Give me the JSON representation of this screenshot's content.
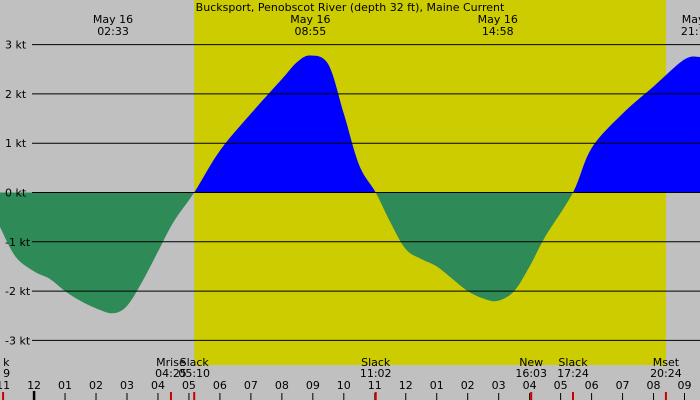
{
  "chart_data": {
    "type": "area",
    "title": "Bucksport, Penobscot River (depth 32 ft), Maine Current",
    "colors": {
      "night": "#c0c0c0",
      "day": "#cccc00",
      "flood": "#0000ff",
      "ebb": "#2e8b57",
      "grid": "#000000",
      "tick_hour": "#000000",
      "tick_event": "#cc0000"
    },
    "x_range_hours": [
      -1.1,
      21.5
    ],
    "ylim": [
      -3.5,
      3.5
    ],
    "y_ticks": [
      {
        "value": 3,
        "label": "3 kt"
      },
      {
        "value": 2,
        "label": "2 kt"
      },
      {
        "value": 1,
        "label": "1 kt"
      },
      {
        "value": 0,
        "label": "0 kt"
      },
      {
        "value": -1,
        "label": "-1 kt"
      },
      {
        "value": -2,
        "label": "-2 kt"
      },
      {
        "value": -3,
        "label": "-3 kt"
      }
    ],
    "daylight_hours": [
      5.17,
      20.4
    ],
    "x_tick_labels": [
      {
        "h": -1,
        "label": "11"
      },
      {
        "h": 0,
        "label": "12"
      },
      {
        "h": 1,
        "label": "01"
      },
      {
        "h": 2,
        "label": "02"
      },
      {
        "h": 3,
        "label": "03"
      },
      {
        "h": 4,
        "label": "04"
      },
      {
        "h": 5,
        "label": "05"
      },
      {
        "h": 6,
        "label": "06"
      },
      {
        "h": 7,
        "label": "07"
      },
      {
        "h": 8,
        "label": "08"
      },
      {
        "h": 9,
        "label": "09"
      },
      {
        "h": 10,
        "label": "10"
      },
      {
        "h": 11,
        "label": "11"
      },
      {
        "h": 12,
        "label": "12"
      },
      {
        "h": 13,
        "label": "01"
      },
      {
        "h": 14,
        "label": "02"
      },
      {
        "h": 15,
        "label": "03"
      },
      {
        "h": 16,
        "label": "04"
      },
      {
        "h": 17,
        "label": "05"
      },
      {
        "h": 18,
        "label": "06"
      },
      {
        "h": 19,
        "label": "07"
      },
      {
        "h": 20,
        "label": "08"
      },
      {
        "h": 21,
        "label": "09"
      }
    ],
    "top_labels": [
      {
        "h": 2.55,
        "date": "May 16",
        "time": "02:33"
      },
      {
        "h": 8.92,
        "date": "May 16",
        "time": "08:55"
      },
      {
        "h": 14.97,
        "date": "May 16",
        "time": "14:58"
      },
      {
        "h": 21.28,
        "date": "May",
        "time": "21:1"
      }
    ],
    "events": [
      {
        "h": -1.0,
        "name": "k",
        "time": "9"
      },
      {
        "h": 4.42,
        "name": "Mrise",
        "time": "04:25"
      },
      {
        "h": 5.17,
        "name": "Slack",
        "time": "05:10"
      },
      {
        "h": 11.03,
        "name": "Slack",
        "time": "11:02"
      },
      {
        "h": 16.05,
        "name": "New",
        "time": "16:03"
      },
      {
        "h": 17.4,
        "name": "Slack",
        "time": "17:24"
      },
      {
        "h": 20.4,
        "name": "Mset",
        "time": "20:24"
      }
    ],
    "series": [
      {
        "x": [
          -1.1,
          -0.6,
          0,
          0.5,
          1,
          1.5,
          2,
          2.55,
          3,
          3.5,
          4,
          4.5,
          5.17,
          6,
          7,
          8,
          8.5,
          8.92,
          9.5,
          10,
          10.5,
          11.03,
          11.5,
          12,
          12.5,
          13,
          13.5,
          14,
          14.5,
          14.97,
          15.5,
          16,
          16.5,
          17.4,
          18,
          19,
          20,
          21,
          21.5
        ],
        "y": [
          -0.7,
          -1.3,
          -1.6,
          -1.75,
          -2.0,
          -2.2,
          -2.35,
          -2.45,
          -2.3,
          -1.8,
          -1.2,
          -0.6,
          0,
          0.85,
          1.6,
          2.3,
          2.65,
          2.78,
          2.6,
          1.6,
          0.55,
          0,
          -0.6,
          -1.15,
          -1.35,
          -1.5,
          -1.75,
          -2.0,
          -2.15,
          -2.2,
          -2.0,
          -1.5,
          -0.9,
          0,
          0.9,
          1.6,
          2.15,
          2.7,
          2.75
        ]
      }
    ]
  }
}
